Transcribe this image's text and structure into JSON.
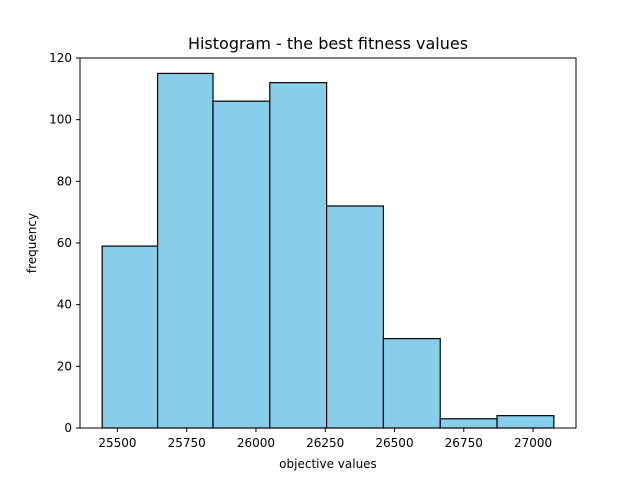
{
  "chart_data": {
    "type": "bar",
    "title": "Histogram - the best fitness values",
    "xlabel": "objective values",
    "ylabel": "frequency",
    "bins": [
      {
        "start": 25445,
        "end": 25645,
        "count": 59
      },
      {
        "start": 25645,
        "end": 25845,
        "count": 115
      },
      {
        "start": 25845,
        "end": 26050,
        "count": 106
      },
      {
        "start": 26050,
        "end": 26255,
        "count": 112
      },
      {
        "start": 26255,
        "end": 26460,
        "count": 72
      },
      {
        "start": 26460,
        "end": 26665,
        "count": 29
      },
      {
        "start": 26665,
        "end": 26870,
        "count": 3
      },
      {
        "start": 26870,
        "end": 27075,
        "count": 4
      }
    ],
    "xlim": [
      25365,
      27155
    ],
    "ylim": [
      0,
      120
    ],
    "xticks": [
      25500,
      25750,
      26000,
      26250,
      26500,
      26750,
      27000
    ],
    "xtick_labels": [
      "25500",
      "25750",
      "26000",
      "26250",
      "26500",
      "26750",
      "27000"
    ],
    "yticks": [
      0,
      20,
      40,
      60,
      80,
      100,
      120
    ],
    "ytick_labels": [
      "0",
      "20",
      "40",
      "60",
      "80",
      "100",
      "120"
    ],
    "bar_color": "#87ceeb",
    "edge_color": "#000000",
    "grid": false,
    "legend": "none"
  }
}
